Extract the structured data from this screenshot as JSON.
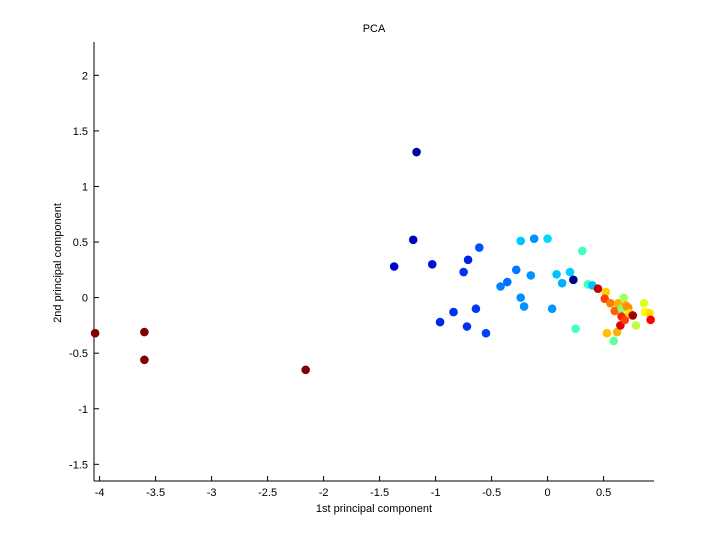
{
  "chart_data": {
    "type": "scatter",
    "title": "PCA",
    "xlabel": "1st principal component",
    "ylabel": "2nd principal component",
    "xlim": [
      -4.05,
      0.95
    ],
    "ylim": [
      -1.65,
      2.3
    ],
    "grid": false,
    "x_ticks": [
      -4,
      -3.5,
      -3,
      -2.5,
      -2,
      -1.5,
      -1,
      -0.5,
      0,
      0.5
    ],
    "x_tick_labels": [
      "-4",
      "-3.5",
      "-3",
      "-2.5",
      "-2",
      "-1.5",
      "-1",
      "-0.5",
      "0",
      "0.5"
    ],
    "y_ticks": [
      -1.5,
      -1,
      -0.5,
      0,
      0.5,
      1,
      1.5,
      2
    ],
    "y_tick_labels": [
      "-1.5",
      "-1",
      "-0.5",
      "0",
      "0.5",
      "1",
      "1.5",
      "2"
    ],
    "points": [
      {
        "x": -4.04,
        "y": -0.32,
        "color": "#800000"
      },
      {
        "x": -3.6,
        "y": -0.31,
        "color": "#800000"
      },
      {
        "x": -3.6,
        "y": -0.56,
        "color": "#800000"
      },
      {
        "x": -2.16,
        "y": -0.65,
        "color": "#800000"
      },
      {
        "x": -1.17,
        "y": 1.31,
        "color": "#0000a0"
      },
      {
        "x": -1.2,
        "y": 0.52,
        "color": "#0000c0"
      },
      {
        "x": -1.37,
        "y": 0.28,
        "color": "#0000c8"
      },
      {
        "x": -1.03,
        "y": 0.3,
        "color": "#0010d8"
      },
      {
        "x": -0.71,
        "y": 0.34,
        "color": "#0020e0"
      },
      {
        "x": -0.75,
        "y": 0.23,
        "color": "#0030f0"
      },
      {
        "x": -0.61,
        "y": 0.45,
        "color": "#0050ff"
      },
      {
        "x": -0.96,
        "y": -0.22,
        "color": "#0028e8"
      },
      {
        "x": -0.84,
        "y": -0.13,
        "color": "#0030f0"
      },
      {
        "x": -0.72,
        "y": -0.26,
        "color": "#0030f0"
      },
      {
        "x": -0.64,
        "y": -0.1,
        "color": "#0038f8"
      },
      {
        "x": -0.55,
        "y": -0.32,
        "color": "#0040ff"
      },
      {
        "x": -0.42,
        "y": 0.1,
        "color": "#0080ff"
      },
      {
        "x": -0.36,
        "y": 0.14,
        "color": "#0070ff"
      },
      {
        "x": -0.28,
        "y": 0.25,
        "color": "#0078ff"
      },
      {
        "x": -0.24,
        "y": 0.0,
        "color": "#0090ff"
      },
      {
        "x": -0.21,
        "y": -0.08,
        "color": "#0090ff"
      },
      {
        "x": -0.24,
        "y": 0.51,
        "color": "#00c8ff"
      },
      {
        "x": -0.12,
        "y": 0.53,
        "color": "#0090ff"
      },
      {
        "x": -0.15,
        "y": 0.2,
        "color": "#0090ff"
      },
      {
        "x": 0.0,
        "y": 0.53,
        "color": "#00d8ff"
      },
      {
        "x": 0.04,
        "y": -0.1,
        "color": "#0098ff"
      },
      {
        "x": 0.08,
        "y": 0.21,
        "color": "#00c0ff"
      },
      {
        "x": 0.13,
        "y": 0.13,
        "color": "#00b0ff"
      },
      {
        "x": 0.2,
        "y": 0.23,
        "color": "#00d0ff"
      },
      {
        "x": 0.23,
        "y": 0.16,
        "color": "#000090"
      },
      {
        "x": 0.31,
        "y": 0.42,
        "color": "#40ffc0"
      },
      {
        "x": 0.25,
        "y": -0.28,
        "color": "#40ffc0"
      },
      {
        "x": 0.36,
        "y": 0.12,
        "color": "#40ffc0"
      },
      {
        "x": 0.4,
        "y": 0.11,
        "color": "#00c0ff"
      },
      {
        "x": 0.45,
        "y": 0.08,
        "color": "#c00000"
      },
      {
        "x": 0.52,
        "y": 0.05,
        "color": "#ffd000"
      },
      {
        "x": 0.51,
        "y": -0.01,
        "color": "#ff4000"
      },
      {
        "x": 0.56,
        "y": -0.05,
        "color": "#ff8000"
      },
      {
        "x": 0.53,
        "y": -0.32,
        "color": "#ffc000"
      },
      {
        "x": 0.59,
        "y": -0.39,
        "color": "#60ffa0"
      },
      {
        "x": 0.62,
        "y": -0.31,
        "color": "#ffb000"
      },
      {
        "x": 0.6,
        "y": -0.12,
        "color": "#ff6000"
      },
      {
        "x": 0.63,
        "y": -0.05,
        "color": "#ffb000"
      },
      {
        "x": 0.66,
        "y": -0.1,
        "color": "#80ff80"
      },
      {
        "x": 0.68,
        "y": 0.0,
        "color": "#a0ff60"
      },
      {
        "x": 0.66,
        "y": -0.17,
        "color": "#ff2000"
      },
      {
        "x": 0.7,
        "y": -0.07,
        "color": "#ffa000"
      },
      {
        "x": 0.65,
        "y": -0.25,
        "color": "#e00000"
      },
      {
        "x": 0.69,
        "y": -0.2,
        "color": "#ff4000"
      },
      {
        "x": 0.72,
        "y": -0.09,
        "color": "#ff9000"
      },
      {
        "x": 0.73,
        "y": -0.14,
        "color": "#ffe000"
      },
      {
        "x": 0.76,
        "y": -0.16,
        "color": "#a00000"
      },
      {
        "x": 0.79,
        "y": -0.25,
        "color": "#c0ff40"
      },
      {
        "x": 0.86,
        "y": -0.05,
        "color": "#e0ff20"
      },
      {
        "x": 0.87,
        "y": -0.13,
        "color": "#ffff00"
      },
      {
        "x": 0.91,
        "y": -0.14,
        "color": "#ffe000"
      },
      {
        "x": 0.92,
        "y": -0.2,
        "color": "#ff0000"
      }
    ]
  }
}
